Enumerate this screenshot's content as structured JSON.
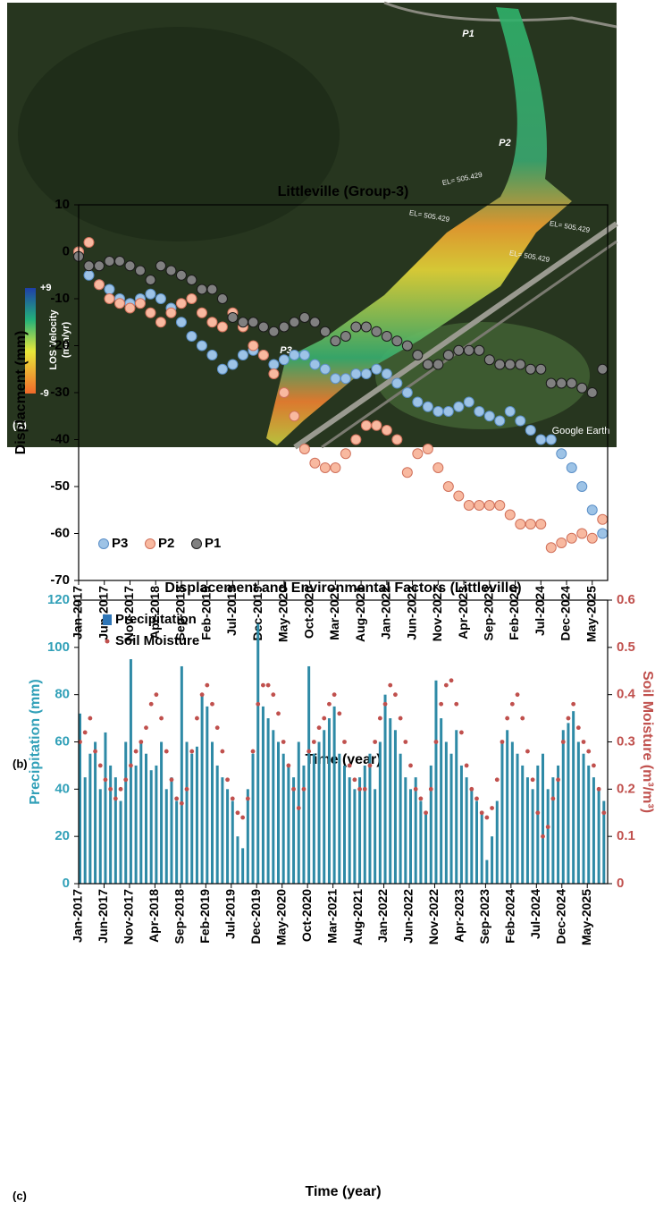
{
  "panel_a": {
    "label": "(a)",
    "markers": [
      "P1",
      "P2",
      "P3"
    ],
    "colorbar": {
      "title": "LOS Velocity",
      "unit": "(mm/yr)",
      "max_label": "+9",
      "min_label": "-9"
    },
    "elevation_labels": [
      "EL= 505.429",
      "EL= 505.429",
      "EL= 505.429",
      "EL= 505.429"
    ],
    "attribution": "Google Earth"
  },
  "chart_data": [
    {
      "type": "scatter",
      "title": "Littleville (Group-3)",
      "panel_label": "(b)",
      "xlabel": "Time (year)",
      "ylabel": "Displacment (mm)",
      "legend": "lower left",
      "x": [
        "Jan-2017",
        "Mar-2017",
        "May-2017",
        "Jul-2017",
        "Sep-2017",
        "Nov-2017",
        "Jan-2018",
        "Mar-2018",
        "May-2018",
        "Jul-2018",
        "Sep-2018",
        "Nov-2018",
        "Jan-2019",
        "Mar-2019",
        "May-2019",
        "Jul-2019",
        "Sep-2019",
        "Nov-2019",
        "Jan-2020",
        "Mar-2020",
        "May-2020",
        "Jul-2020",
        "Sep-2020",
        "Nov-2020",
        "Jan-2021",
        "Mar-2021",
        "May-2021",
        "Jul-2021",
        "Sep-2021",
        "Nov-2021",
        "Jan-2022",
        "Mar-2022",
        "May-2022",
        "Jul-2022",
        "Sep-2022",
        "Nov-2022",
        "Jan-2023",
        "Mar-2023",
        "May-2023",
        "Jul-2023",
        "Sep-2023",
        "Nov-2023",
        "Jan-2024",
        "Mar-2024",
        "May-2024",
        "Jul-2024",
        "Sep-2024",
        "Nov-2024",
        "Jan-2025",
        "Mar-2025",
        "May-2025",
        "Jul-2025"
      ],
      "series": [
        {
          "name": "P3",
          "color": "#9dc3e6",
          "edgecolor": "#5b8fc7",
          "values": [
            0,
            -5,
            -7,
            -8,
            -10,
            -11,
            -10,
            -9,
            -10,
            -12,
            -15,
            -18,
            -20,
            -22,
            -25,
            -24,
            -22,
            -21,
            -22,
            -24,
            -23,
            -22,
            -22,
            -24,
            -25,
            -27,
            -27,
            -26,
            -26,
            -25,
            -26,
            -28,
            -30,
            -32,
            -33,
            -34,
            -34,
            -33,
            -32,
            -34,
            -35,
            -36,
            -34,
            -36,
            -38,
            -40,
            -40,
            -43,
            -46,
            -50,
            -55,
            -60
          ]
        },
        {
          "name": "P2",
          "color": "#f8b9a0",
          "edgecolor": "#d0705a",
          "values": [
            0,
            2,
            -7,
            -10,
            -11,
            -12,
            -11,
            -13,
            -15,
            -13,
            -11,
            -10,
            -13,
            -15,
            -16,
            -13,
            -16,
            -20,
            -22,
            -26,
            -30,
            -35,
            -42,
            -45,
            -46,
            -46,
            -43,
            -40,
            -37,
            -37,
            -38,
            -40,
            -47,
            -43,
            -42,
            -46,
            -50,
            -52,
            -54,
            -54,
            -54,
            -54,
            -56,
            -58,
            -58,
            -58,
            -63,
            -62,
            -61,
            -60,
            -61,
            -57
          ]
        },
        {
          "name": "P1",
          "color": "#808080",
          "edgecolor": "#1a1a1a",
          "values": [
            -1,
            -3,
            -3,
            -2,
            -2,
            -3,
            -4,
            -6,
            -3,
            -4,
            -5,
            -6,
            -8,
            -8,
            -10,
            -14,
            -15,
            -15,
            -16,
            -17,
            -16,
            -15,
            -14,
            -15,
            -17,
            -19,
            -18,
            -16,
            -16,
            -17,
            -18,
            -19,
            -20,
            -22,
            -24,
            -24,
            -22,
            -21,
            -21,
            -21,
            -23,
            -24,
            -24,
            -24,
            -25,
            -25,
            -28,
            -28,
            -28,
            -29,
            -30,
            -25
          ]
        }
      ],
      "xlim": [
        "Jan-2017",
        "Aug-2025"
      ],
      "xticks": [
        "Jan-2017",
        "Jun-2017",
        "Nov-2017",
        "Apr-2018",
        "Sep-2018",
        "Feb-2019",
        "Jul-2019",
        "Dec-2019",
        "May-2020",
        "Oct-2020",
        "Mar-2021",
        "Aug-2021",
        "Jan-2022",
        "Jun-2022",
        "Nov-2022",
        "Apr-2023",
        "Sep-2023",
        "Feb-2024",
        "Jul-2024",
        "Dec-2024",
        "May-2025"
      ],
      "ylim": [
        -70,
        10
      ],
      "yticks": [
        -70,
        -60,
        -50,
        -40,
        -30,
        -20,
        -10,
        0,
        10
      ]
    },
    {
      "type": "bar",
      "title": "Displacement and Environmental Factors (Littleville)",
      "panel_label": "(c)",
      "xlabel": "Time (year)",
      "ylabel": "Precipitation (mm)",
      "y2label": "Soil Moisture (m³/m³)",
      "ylabel_color": "#31a0b8",
      "y2label_color": "#c0504d",
      "legend": "upper left",
      "x": [
        "Jan-2017",
        "Feb-2017",
        "Mar-2017",
        "Apr-2017",
        "May-2017",
        "Jun-2017",
        "Jul-2017",
        "Aug-2017",
        "Sep-2017",
        "Oct-2017",
        "Nov-2017",
        "Dec-2017",
        "Jan-2018",
        "Feb-2018",
        "Mar-2018",
        "Apr-2018",
        "May-2018",
        "Jun-2018",
        "Jul-2018",
        "Aug-2018",
        "Sep-2018",
        "Oct-2018",
        "Nov-2018",
        "Dec-2018",
        "Jan-2019",
        "Feb-2019",
        "Mar-2019",
        "Apr-2019",
        "May-2019",
        "Jun-2019",
        "Jul-2019",
        "Aug-2019",
        "Sep-2019",
        "Oct-2019",
        "Nov-2019",
        "Dec-2019",
        "Jan-2020",
        "Feb-2020",
        "Mar-2020",
        "Apr-2020",
        "May-2020",
        "Jun-2020",
        "Jul-2020",
        "Aug-2020",
        "Sep-2020",
        "Oct-2020",
        "Nov-2020",
        "Dec-2020",
        "Jan-2021",
        "Feb-2021",
        "Mar-2021",
        "Apr-2021",
        "May-2021",
        "Jun-2021",
        "Jul-2021",
        "Aug-2021",
        "Sep-2021",
        "Oct-2021",
        "Nov-2021",
        "Dec-2021",
        "Jan-2022",
        "Feb-2022",
        "Mar-2022",
        "Apr-2022",
        "May-2022",
        "Jun-2022",
        "Jul-2022",
        "Aug-2022",
        "Sep-2022",
        "Oct-2022",
        "Nov-2022",
        "Dec-2022",
        "Jan-2023",
        "Feb-2023",
        "Mar-2023",
        "Apr-2023",
        "May-2023",
        "Jun-2023",
        "Jul-2023",
        "Aug-2023",
        "Sep-2023",
        "Oct-2023",
        "Nov-2023",
        "Dec-2023",
        "Jan-2024",
        "Feb-2024",
        "Mar-2024",
        "Apr-2024",
        "May-2024",
        "Jun-2024",
        "Jul-2024",
        "Aug-2024",
        "Sep-2024",
        "Oct-2024",
        "Nov-2024",
        "Dec-2024",
        "Jan-2025",
        "Feb-2025",
        "Mar-2025",
        "Apr-2025",
        "May-2025",
        "Jun-2025",
        "Jul-2025",
        "Aug-2025"
      ],
      "series": [
        {
          "name": "Precipitation",
          "type": "bar",
          "color": "#2e8aa6",
          "legend_color": "#2e75b6",
          "values": [
            72,
            45,
            55,
            60,
            40,
            64,
            50,
            45,
            35,
            60,
            95,
            50,
            60,
            55,
            48,
            50,
            60,
            40,
            45,
            35,
            92,
            60,
            55,
            58,
            80,
            75,
            60,
            50,
            45,
            40,
            35,
            20,
            15,
            40,
            55,
            110,
            75,
            70,
            65,
            60,
            55,
            50,
            45,
            60,
            50,
            92,
            55,
            60,
            65,
            70,
            75,
            55,
            50,
            45,
            40,
            45,
            50,
            55,
            40,
            60,
            80,
            70,
            65,
            55,
            45,
            40,
            45,
            35,
            30,
            50,
            86,
            70,
            60,
            55,
            65,
            50,
            45,
            40,
            35,
            30,
            10,
            20,
            35,
            60,
            65,
            60,
            55,
            50,
            45,
            40,
            50,
            55,
            40,
            45,
            50,
            65,
            68,
            73,
            60,
            55,
            50,
            45,
            40,
            35
          ]
        },
        {
          "name": "Soil Moisture",
          "type": "scatter",
          "axis": "y2",
          "color": "#c0504d",
          "values": [
            0.3,
            0.32,
            0.35,
            0.28,
            0.25,
            0.22,
            0.2,
            0.18,
            0.2,
            0.22,
            0.25,
            0.28,
            0.3,
            0.33,
            0.38,
            0.4,
            0.35,
            0.28,
            0.22,
            0.18,
            0.17,
            0.2,
            0.28,
            0.35,
            0.4,
            0.42,
            0.38,
            0.33,
            0.28,
            0.22,
            0.18,
            0.15,
            0.14,
            0.18,
            0.28,
            0.38,
            0.42,
            0.42,
            0.4,
            0.36,
            0.3,
            0.25,
            0.2,
            0.16,
            0.2,
            0.28,
            0.3,
            0.33,
            0.35,
            0.38,
            0.4,
            0.36,
            0.3,
            0.25,
            0.22,
            0.2,
            0.2,
            0.25,
            0.3,
            0.35,
            0.38,
            0.42,
            0.4,
            0.35,
            0.3,
            0.25,
            0.2,
            0.18,
            0.15,
            0.2,
            0.3,
            0.38,
            0.42,
            0.43,
            0.38,
            0.32,
            0.25,
            0.2,
            0.18,
            0.15,
            0.14,
            0.16,
            0.22,
            0.3,
            0.35,
            0.38,
            0.4,
            0.35,
            0.28,
            0.22,
            0.15,
            0.1,
            0.12,
            0.18,
            0.22,
            0.3,
            0.35,
            0.38,
            0.33,
            0.3,
            0.28,
            0.25,
            0.2,
            0.15
          ]
        }
      ],
      "xlim": [
        "Jan-2017",
        "Sep-2025"
      ],
      "xticks": [
        "Jan-2017",
        "Jun-2017",
        "Nov-2017",
        "Apr-2018",
        "Sep-2018",
        "Feb-2019",
        "Jul-2019",
        "Dec-2019",
        "May-2020",
        "Oct-2020",
        "Mar-2021",
        "Aug-2021",
        "Jan-2022",
        "Jun-2022",
        "Nov-2022",
        "Apr-2023",
        "Sep-2023",
        "Feb-2024",
        "Jul-2024",
        "Dec-2024",
        "May-2025"
      ],
      "ylim": [
        0,
        120
      ],
      "yticks": [
        0,
        20,
        40,
        60,
        80,
        100,
        120
      ],
      "y2lim": [
        0,
        0.6
      ],
      "y2ticks": [
        0,
        0.1,
        0.2,
        0.3,
        0.4,
        0.5,
        0.6
      ]
    }
  ]
}
